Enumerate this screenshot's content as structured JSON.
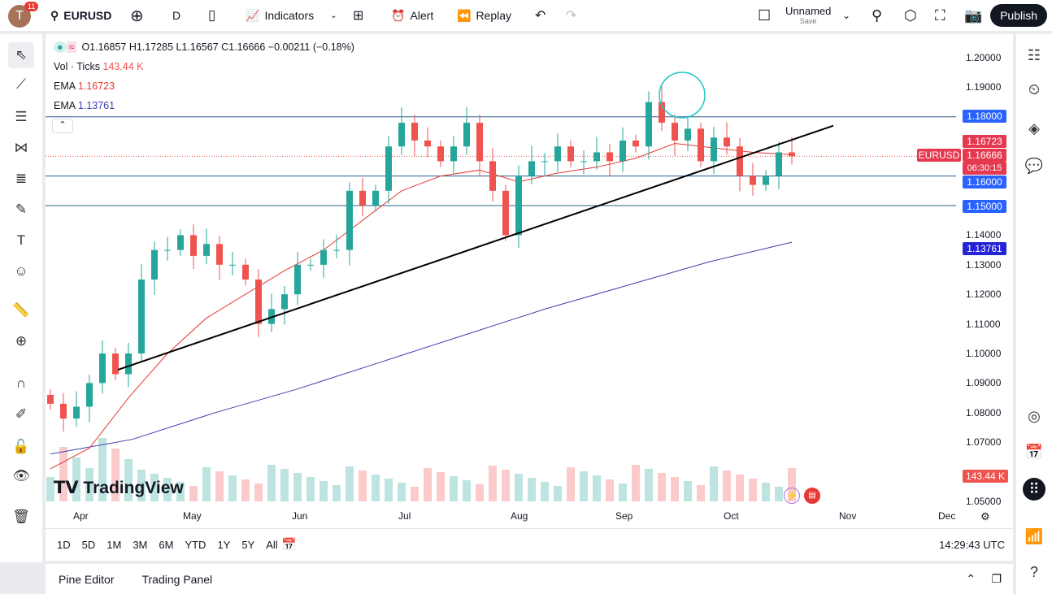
{
  "topbar": {
    "avatar": "T",
    "notifications": "11",
    "symbol": "EURUSD",
    "interval": "D",
    "indicators": "Indicators",
    "alert": "Alert",
    "replay": "Replay",
    "layout_name": "Unnamed",
    "layout_save": "Save",
    "publish": "Publish"
  },
  "legend": {
    "ohlc": "O1.16857 H1.17285 L1.16567 C1.16666 −0.00211 (−0.18%)",
    "vol_label": "Vol · Ticks",
    "vol_value": "143.44 K",
    "ema1_label": "EMA",
    "ema1_value": "1.16723",
    "ema2_label": "EMA",
    "ema2_value": "1.13761"
  },
  "price_axis": {
    "ticks": [
      "1.20000",
      "1.19000",
      "1.14000",
      "1.13000",
      "1.12000",
      "1.11000",
      "1.10000",
      "1.09000",
      "1.08000",
      "1.07000",
      "1.05000"
    ],
    "labels": {
      "h1": "1.18000",
      "ema_fast": "1.16723",
      "last": "1.16666",
      "countdown": "06:30:15",
      "h2": "1.16000",
      "h3": "1.15000",
      "ema_slow": "1.13761",
      "volume": "143.44 K"
    },
    "symbol_tag": "EURUSD"
  },
  "time_axis": [
    "Apr",
    "May",
    "Jun",
    "Jul",
    "Aug",
    "Sep",
    "Oct",
    "Nov",
    "Dec"
  ],
  "ranges": [
    "1D",
    "5D",
    "1M",
    "3M",
    "6M",
    "YTD",
    "1Y",
    "5Y",
    "All"
  ],
  "clock": "14:29:43 UTC",
  "bottom": {
    "pine": "Pine Editor",
    "panel": "Trading Panel"
  },
  "watermark": "TradingView",
  "colors": {
    "up": "#26a69a",
    "down": "#ef5350",
    "ema_fast": "#e53935",
    "ema_slow": "#3f3fb0",
    "hline": "#2962ff",
    "annotation": "#1ec5c5"
  },
  "chart_data": {
    "type": "candlestick",
    "symbol": "EURUSD",
    "interval": "D",
    "closes": [
      1.083,
      1.078,
      1.082,
      1.09,
      1.1,
      1.093,
      1.1,
      1.125,
      1.135,
      1.135,
      1.14,
      1.133,
      1.137,
      1.13,
      1.13,
      1.125,
      1.11,
      1.115,
      1.12,
      1.13,
      1.13,
      1.135,
      1.135,
      1.155,
      1.15,
      1.155,
      1.17,
      1.178,
      1.172,
      1.17,
      1.165,
      1.17,
      1.178,
      1.165,
      1.155,
      1.14,
      1.16,
      1.165,
      1.165,
      1.17,
      1.165,
      1.165,
      1.168,
      1.165,
      1.172,
      1.17,
      1.185,
      1.178,
      1.172,
      1.176,
      1.165,
      1.173,
      1.17,
      1.16,
      1.157,
      1.16,
      1.168,
      1.16666
    ],
    "ema_fast": [
      1.061,
      1.068,
      1.085,
      1.1,
      1.112,
      1.12,
      1.128,
      1.135,
      1.145,
      1.155,
      1.16,
      1.162,
      1.158,
      1.161,
      1.163,
      1.166,
      1.171,
      1.1695,
      1.168,
      1.16723
    ],
    "ema_slow": [
      1.066,
      1.071,
      1.08,
      1.088,
      1.097,
      1.106,
      1.115,
      1.123,
      1.131,
      1.13761
    ],
    "horizontal_levels": [
      1.18,
      1.16,
      1.15
    ],
    "trendline": [
      1.0945,
      1.177
    ],
    "ylim": [
      1.045,
      1.205
    ]
  }
}
